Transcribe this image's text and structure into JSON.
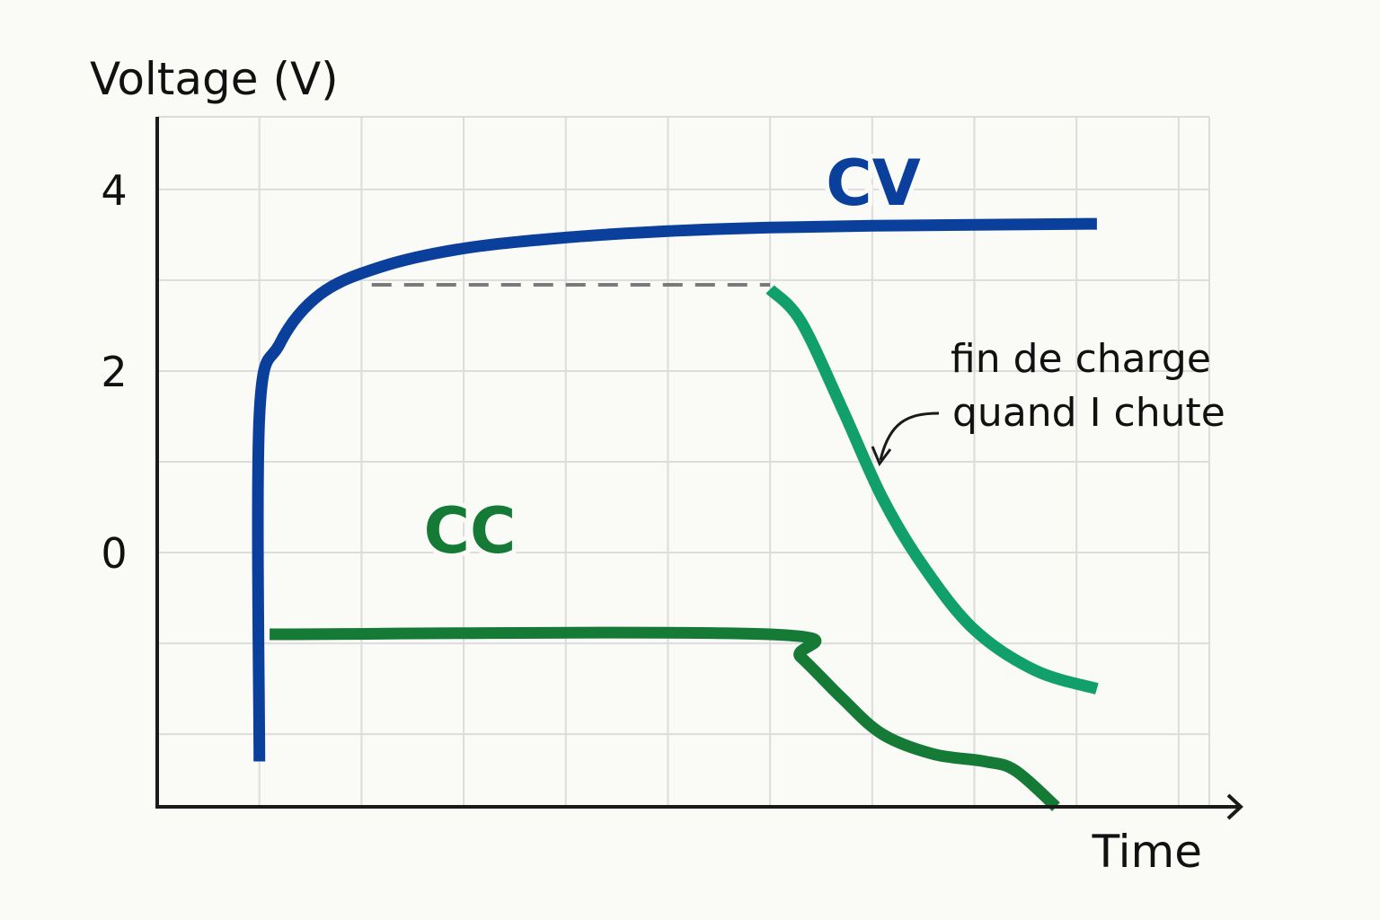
{
  "colors": {
    "background": "#fafaf7",
    "grid": "#dcdcdc",
    "axis": "#1a1a1a",
    "cv": "#0b3f9c",
    "cc": "#157a35",
    "cc_voltage": "#11a06c",
    "dashed": "#7a7a7a"
  },
  "chart_data": {
    "type": "line",
    "title": "",
    "ylabel": "Voltage (V)",
    "xlabel": "Time",
    "y_ticks": [
      "4",
      "2",
      "0"
    ],
    "y_tick_values": [
      4,
      2,
      0
    ],
    "ylim": [
      -2.8,
      4.8
    ],
    "xlim": [
      0,
      10.3
    ],
    "grid": true,
    "annotation": {
      "lines": [
        "fin de charge",
        "quand I chute"
      ]
    },
    "series": [
      {
        "name": "CV",
        "color": "#0b3f9c",
        "points": [
          [
            1,
            -2.3
          ],
          [
            1,
            1.5
          ],
          [
            1.2,
            2.3
          ],
          [
            1.6,
            2.85
          ],
          [
            2.2,
            3.15
          ],
          [
            3,
            3.35
          ],
          [
            4,
            3.47
          ],
          [
            5,
            3.54
          ],
          [
            6,
            3.58
          ],
          [
            7,
            3.6
          ],
          [
            8,
            3.61
          ],
          [
            9,
            3.62
          ],
          [
            9.2,
            3.62
          ]
        ]
      },
      {
        "name": "CC",
        "color": "#157a35",
        "points": [
          [
            1.1,
            -0.9
          ],
          [
            6,
            -0.9
          ],
          [
            6.3,
            -1.15
          ],
          [
            6.7,
            -1.6
          ],
          [
            7.1,
            -2.0
          ],
          [
            7.6,
            -2.22
          ],
          [
            8.1,
            -2.3
          ],
          [
            8.4,
            -2.4
          ],
          [
            8.8,
            -2.8
          ]
        ]
      },
      {
        "name": "",
        "color": "#11a06c",
        "points": [
          [
            6,
            2.9
          ],
          [
            6.3,
            2.55
          ],
          [
            6.7,
            1.6
          ],
          [
            7.1,
            0.6
          ],
          [
            7.5,
            -0.15
          ],
          [
            8,
            -0.85
          ],
          [
            8.6,
            -1.3
          ],
          [
            9.2,
            -1.5
          ]
        ]
      }
    ],
    "reference_line": {
      "x_start": 2.1,
      "x_end": 6.0,
      "y": 2.95
    }
  }
}
